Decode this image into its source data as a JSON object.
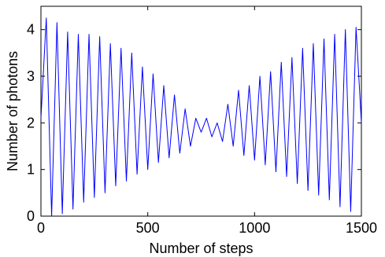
{
  "chart_data": {
    "type": "line",
    "title": "",
    "xlabel": "Number of steps",
    "ylabel": "Number of photons",
    "xlim": [
      0,
      1500
    ],
    "ylim": [
      0,
      4.5
    ],
    "xticks": [
      0,
      500,
      1000,
      1500
    ],
    "yticks": [
      0,
      1,
      2,
      3,
      4
    ],
    "xtick_labels": [
      "0",
      "500",
      "1000",
      "1500"
    ],
    "ytick_labels": [
      "0",
      "1",
      "2",
      "3",
      "4"
    ],
    "grid": false,
    "legend": "none",
    "line_color": "#0000ff",
    "axis_color": "#000000",
    "series": [
      {
        "x": [
          0,
          25,
          50,
          75,
          100,
          125,
          150,
          175,
          200,
          225,
          250,
          275,
          300,
          325,
          350,
          375,
          400,
          425,
          450,
          475,
          500,
          525,
          550,
          575,
          600,
          625,
          650,
          675,
          700,
          725,
          750,
          775,
          800,
          825,
          850,
          875,
          900,
          925,
          950,
          975,
          1000,
          1025,
          1050,
          1075,
          1100,
          1125,
          1150,
          1175,
          1200,
          1225,
          1250,
          1275,
          1300,
          1325,
          1350,
          1375,
          1400,
          1425,
          1450,
          1475,
          1500
        ],
        "y": [
          2.1,
          4.25,
          0.0,
          4.15,
          0.05,
          3.95,
          0.15,
          3.9,
          0.3,
          3.9,
          0.4,
          3.85,
          0.5,
          3.7,
          0.65,
          3.6,
          0.75,
          3.5,
          0.9,
          3.2,
          1.0,
          3.05,
          1.15,
          2.8,
          1.25,
          2.6,
          1.35,
          2.3,
          1.5,
          2.1,
          1.8,
          2.1,
          1.7,
          2.0,
          1.6,
          2.4,
          1.5,
          2.7,
          1.3,
          2.8,
          1.2,
          3.0,
          1.1,
          3.1,
          0.95,
          3.3,
          0.85,
          3.4,
          0.7,
          3.6,
          0.55,
          3.7,
          0.45,
          3.8,
          0.35,
          3.9,
          0.2,
          4.0,
          0.1,
          4.05,
          2.0
        ]
      }
    ]
  }
}
